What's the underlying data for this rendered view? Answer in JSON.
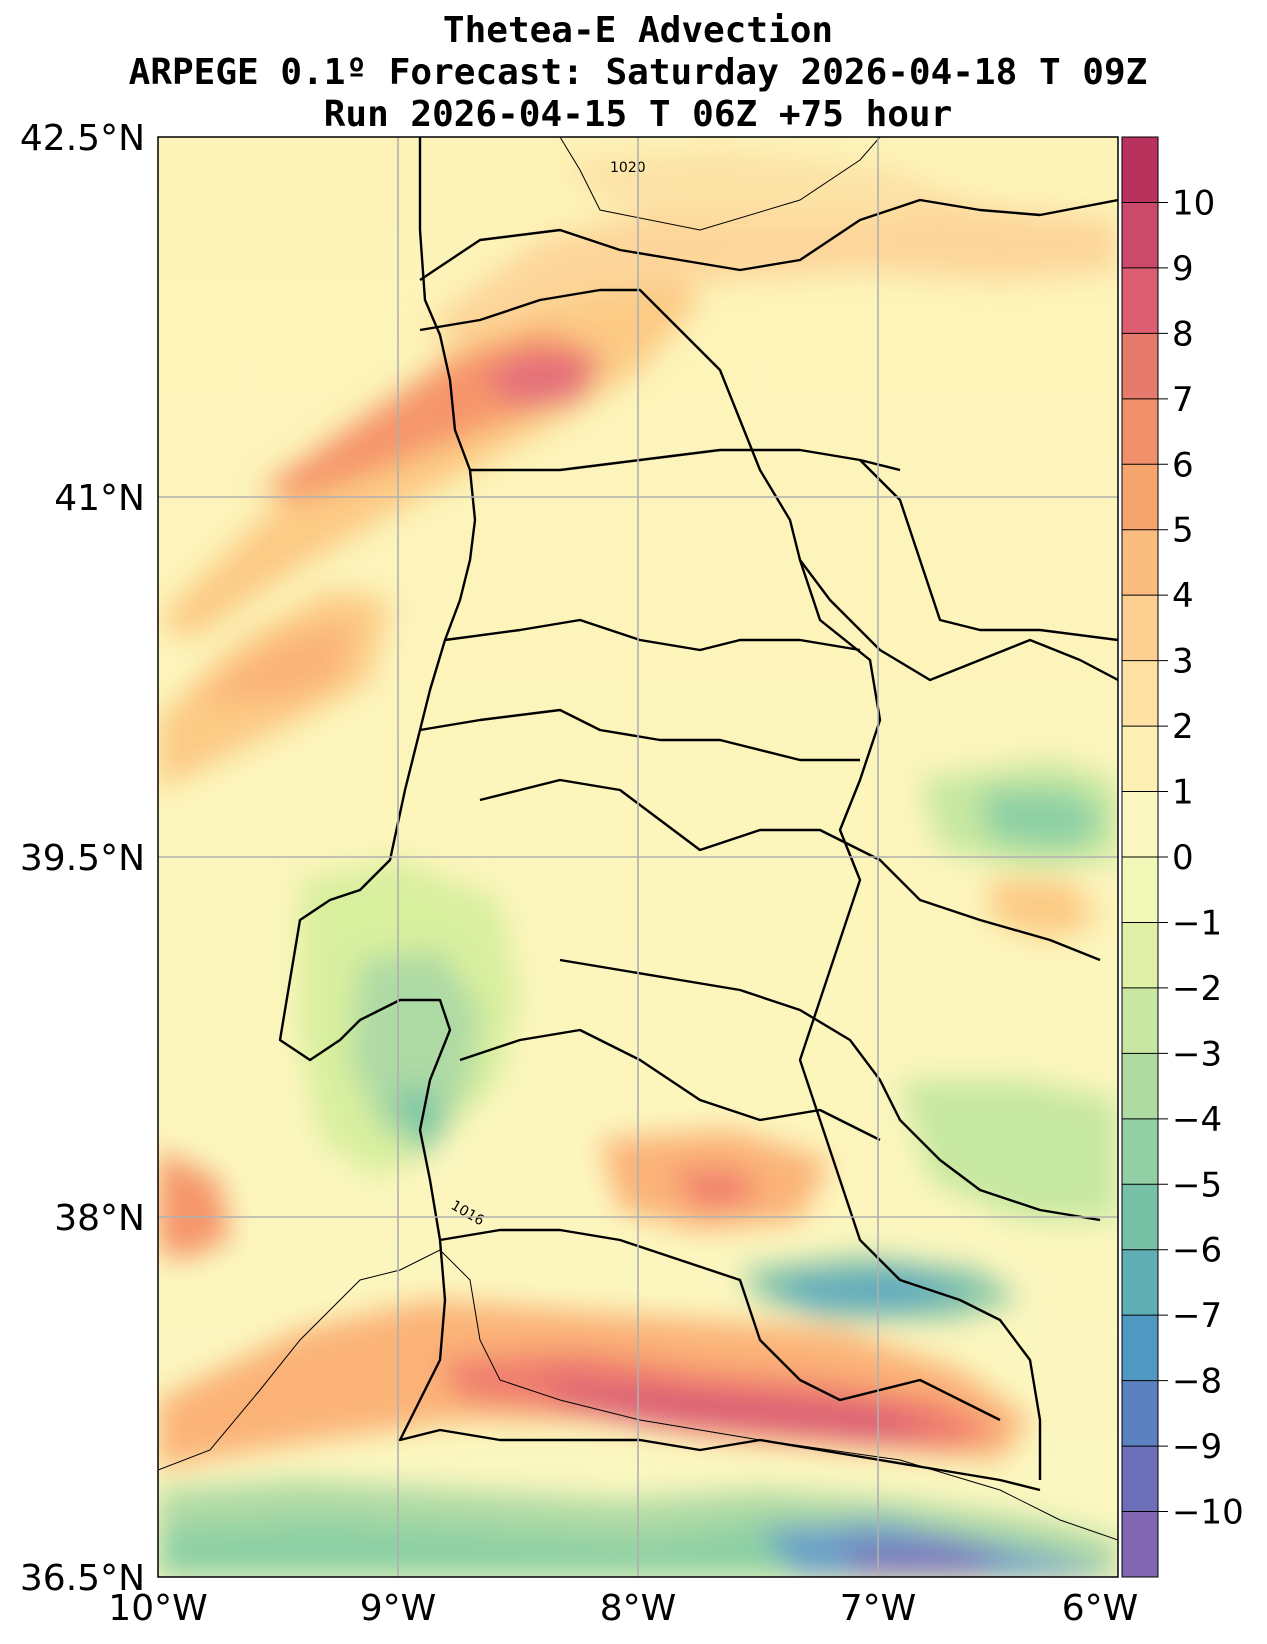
{
  "title": {
    "line1": "Thetea-E Advection",
    "line2": "ARPEGE 0.1º Forecast: Saturday 2026-04-18 T 09Z",
    "line3": "Run 2026-04-15 T 06Z +75 hour"
  },
  "axes": {
    "lat_labels": [
      "42.5°N",
      "41°N",
      "39.5°N",
      "38°N",
      "36.5°N"
    ],
    "lon_labels": [
      "10°W",
      "9°W",
      "8°W",
      "7°W",
      "6°W"
    ],
    "lat_range": [
      36.5,
      42.5
    ],
    "lon_range": [
      -10,
      -6
    ],
    "grid": true
  },
  "colorbar": {
    "labels": [
      "10",
      "9",
      "8",
      "7",
      "6",
      "5",
      "4",
      "3",
      "2",
      "1",
      "0",
      "−1",
      "−2",
      "−3",
      "−4",
      "−5",
      "−6",
      "−7",
      "−8",
      "−9",
      "−10"
    ],
    "palette": "Spectral"
  },
  "isobars": {
    "label_1020": "1020",
    "label_1016": "1016"
  }
}
